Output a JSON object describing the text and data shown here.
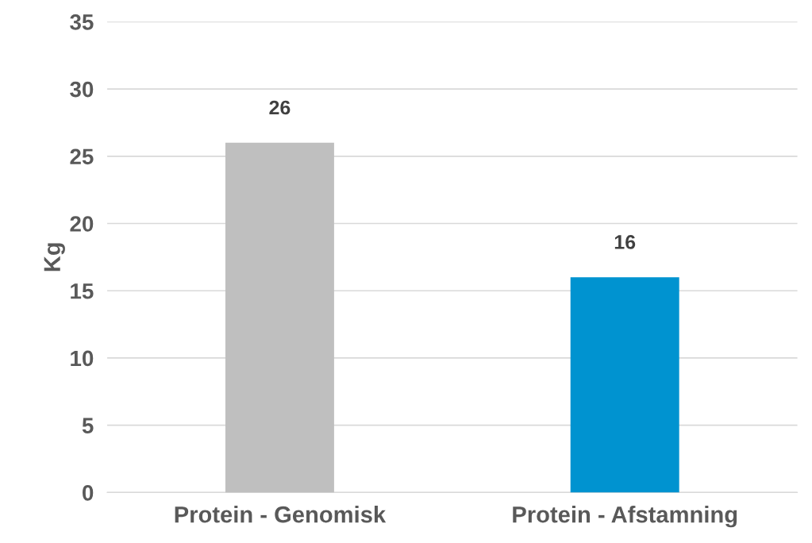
{
  "chart_data": {
    "type": "bar",
    "ylabel": "Kg",
    "categories": [
      "Protein - Genomisk",
      "Protein - Afstamning"
    ],
    "values": [
      26,
      16
    ],
    "colors": [
      "#bfbfbf",
      "#0093d0"
    ],
    "ylim": [
      0,
      35
    ],
    "yticks": [
      0,
      5,
      10,
      15,
      20,
      25,
      30,
      35
    ],
    "grid": "y",
    "data_labels": true
  }
}
